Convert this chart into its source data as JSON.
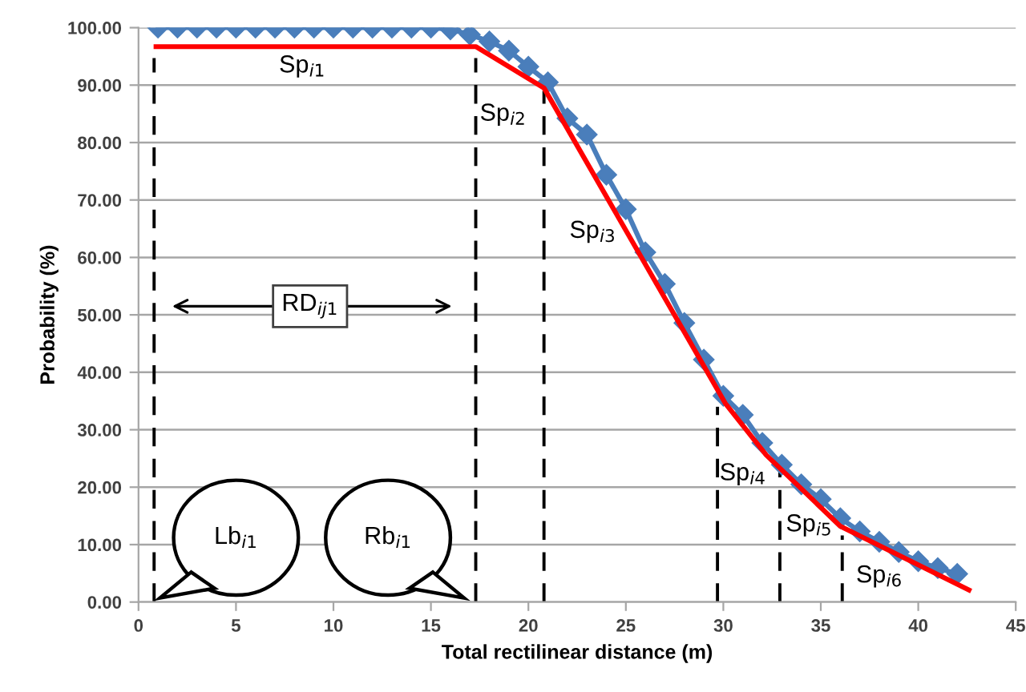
{
  "chart_data": {
    "type": "line",
    "xlabel": "Total rectilinear distance (m)",
    "ylabel": "Probability (%)",
    "xlim": [
      0,
      45
    ],
    "xticks": [
      0,
      5,
      10,
      15,
      20,
      25,
      30,
      35,
      40,
      45
    ],
    "ylim": [
      0,
      100
    ],
    "yticks": [
      {
        "value": 0,
        "label": "0.00"
      },
      {
        "value": 10,
        "label": "10.00"
      },
      {
        "value": 20,
        "label": "20.00"
      },
      {
        "value": 30,
        "label": "30.00"
      },
      {
        "value": 40,
        "label": "40.00"
      },
      {
        "value": 50,
        "label": "50.00"
      },
      {
        "value": 60,
        "label": "60.00"
      },
      {
        "value": 70,
        "label": "70.00"
      },
      {
        "value": 80,
        "label": "80.00"
      },
      {
        "value": 90,
        "label": "90.00"
      },
      {
        "value": 100,
        "label": "100.00"
      }
    ],
    "grid": "y",
    "series": [
      {
        "type": "line",
        "color": "#4a7ebb",
        "marker": "diamond",
        "line_style": "solid",
        "x": [
          1,
          2,
          3,
          4,
          5,
          6,
          7,
          8,
          9,
          10,
          11,
          12,
          13,
          14,
          15,
          16,
          17,
          18,
          19,
          20,
          21,
          22,
          23,
          24,
          25,
          26,
          27,
          28,
          29,
          30,
          31,
          32,
          33,
          34,
          35,
          36,
          37,
          38,
          39,
          40,
          41,
          42
        ],
        "values": [
          100,
          100,
          100,
          100,
          100,
          100,
          100,
          100,
          100,
          100,
          100,
          100,
          100,
          100,
          100,
          99.7,
          98.8,
          97.6,
          96,
          93.2,
          90.5,
          84.2,
          81.4,
          74.4,
          68.4,
          60.9,
          55.4,
          48.6,
          42.2,
          35.9,
          32.6,
          27.7,
          23.9,
          20.5,
          17.9,
          14.6,
          12.3,
          10.5,
          8.7,
          7.1,
          5.9,
          4.9
        ]
      },
      {
        "type": "line",
        "color": "#ff0000",
        "marker": "none",
        "line_style": "solid",
        "x": [
          0.9,
          17.3,
          20.8,
          30.1,
          32.2,
          36.0,
          42.6
        ],
        "values": [
          96.7,
          96.7,
          89.5,
          34.6,
          25.6,
          13.2,
          2.1
        ]
      },
      {
        "type": "line",
        "color": "#000000",
        "marker": "none",
        "line_style": "dashed",
        "x": [
          0.8,
          0.8
        ],
        "values": [
          0,
          94.7
        ]
      },
      {
        "type": "line",
        "color": "#000000",
        "marker": "none",
        "line_style": "dashed",
        "x": [
          17.3,
          17.3
        ],
        "values": [
          0,
          94.7
        ]
      },
      {
        "type": "line",
        "color": "#000000",
        "marker": "none",
        "line_style": "dashed",
        "x": [
          20.8,
          20.8
        ],
        "values": [
          0,
          89
        ]
      },
      {
        "type": "line",
        "color": "#000000",
        "marker": "none",
        "line_style": "dashed",
        "x": [
          29.7,
          29.7
        ],
        "values": [
          0,
          34
        ]
      },
      {
        "type": "line",
        "color": "#000000",
        "marker": "none",
        "line_style": "dashed",
        "x": [
          32.9,
          32.9
        ],
        "values": [
          0,
          23
        ]
      },
      {
        "color": "#000000",
        "marker": "none",
        "line_style": "dashed",
        "x": [
          36.1,
          36.1
        ],
        "values": [
          0,
          11.6
        ]
      }
    ],
    "annotations": [
      "Sp$_{i1}$",
      "Sp$_{i2}$",
      "Sp$_{i3}$",
      "Sp$_{i4}$",
      "Sp$_{i5}$",
      "Sp$_{i6}$",
      "RD$_{ij1}$",
      "Lb$_{i1}$",
      "Rb$_{i1}$"
    ]
  }
}
